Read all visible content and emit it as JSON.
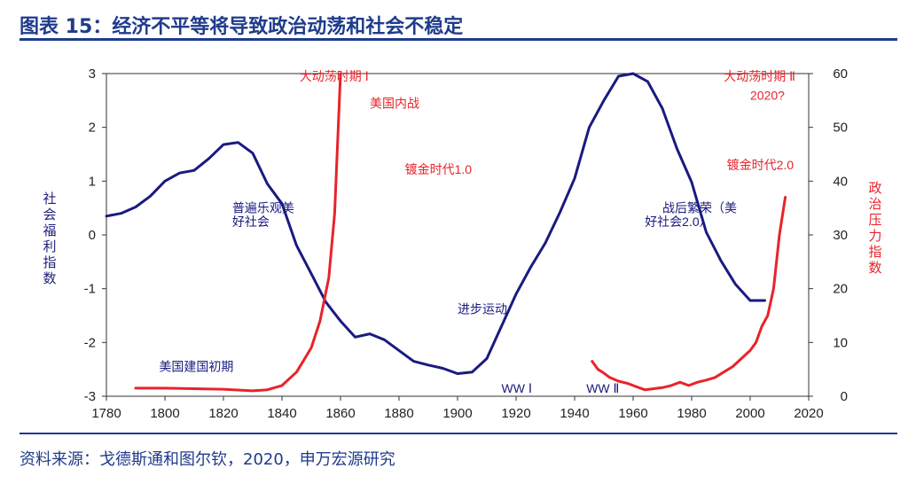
{
  "header": {
    "title": "图表 15：经济不平等将导致政治动荡和社会不稳定"
  },
  "footer": {
    "source": "资料来源：戈德斯通和图尔钦，2020，申万宏源研究"
  },
  "colors": {
    "brand": "#1f3b8c",
    "welfare_line": "#1a1a80",
    "pressure_line": "#e8232a",
    "axis": "#333333"
  },
  "chart_data": {
    "type": "line",
    "title": "",
    "xlabel": "",
    "xlim": [
      1780,
      2020
    ],
    "xticks": [
      1780,
      1800,
      1820,
      1840,
      1860,
      1880,
      1900,
      1920,
      1940,
      1960,
      1980,
      2000,
      2020
    ],
    "y_left": {
      "label": "社会福利指数",
      "lim": [
        -3,
        3
      ],
      "ticks": [
        -3,
        -2,
        -1,
        0,
        1,
        2,
        3
      ]
    },
    "y_right": {
      "label": "政治压力指数",
      "lim": [
        0,
        60
      ],
      "ticks": [
        0,
        10,
        20,
        30,
        40,
        50,
        60
      ]
    },
    "series": [
      {
        "name": "社会福利指数",
        "axis": "left",
        "color": "#1a1a80",
        "points": [
          [
            1780,
            0.35
          ],
          [
            1785,
            0.4
          ],
          [
            1790,
            0.52
          ],
          [
            1795,
            0.72
          ],
          [
            1800,
            1.0
          ],
          [
            1805,
            1.15
          ],
          [
            1810,
            1.2
          ],
          [
            1815,
            1.42
          ],
          [
            1820,
            1.68
          ],
          [
            1825,
            1.72
          ],
          [
            1830,
            1.52
          ],
          [
            1835,
            0.95
          ],
          [
            1840,
            0.58
          ],
          [
            1845,
            -0.2
          ],
          [
            1850,
            -0.72
          ],
          [
            1855,
            -1.25
          ],
          [
            1860,
            -1.6
          ],
          [
            1865,
            -1.9
          ],
          [
            1870,
            -1.84
          ],
          [
            1875,
            -1.95
          ],
          [
            1880,
            -2.15
          ],
          [
            1885,
            -2.35
          ],
          [
            1890,
            -2.42
          ],
          [
            1895,
            -2.48
          ],
          [
            1900,
            -2.58
          ],
          [
            1905,
            -2.55
          ],
          [
            1910,
            -2.3
          ],
          [
            1915,
            -1.7
          ],
          [
            1920,
            -1.1
          ],
          [
            1925,
            -0.6
          ],
          [
            1930,
            -0.15
          ],
          [
            1935,
            0.42
          ],
          [
            1940,
            1.05
          ],
          [
            1945,
            2.0
          ],
          [
            1950,
            2.5
          ],
          [
            1955,
            2.95
          ],
          [
            1960,
            3.0
          ],
          [
            1965,
            2.85
          ],
          [
            1970,
            2.35
          ],
          [
            1975,
            1.6
          ],
          [
            1980,
            0.98
          ],
          [
            1985,
            0.05
          ],
          [
            1990,
            -0.48
          ],
          [
            1995,
            -0.92
          ],
          [
            2000,
            -1.22
          ],
          [
            2005,
            -1.22
          ]
        ]
      },
      {
        "name": "政治压力指数",
        "axis": "right",
        "color": "#e8232a",
        "segments": [
          [
            [
              1790,
              1.5
            ],
            [
              1800,
              1.5
            ],
            [
              1810,
              1.4
            ],
            [
              1820,
              1.3
            ],
            [
              1830,
              1.0
            ],
            [
              1835,
              1.2
            ],
            [
              1840,
              2.0
            ],
            [
              1845,
              4.5
            ],
            [
              1850,
              9.0
            ],
            [
              1853,
              14.0
            ],
            [
              1856,
              22.0
            ],
            [
              1858,
              34.0
            ],
            [
              1860,
              60.0
            ]
          ],
          [
            [
              1946,
              6.5
            ],
            [
              1948,
              5.0
            ],
            [
              1950,
              4.3
            ],
            [
              1952,
              3.5
            ],
            [
              1955,
              2.8
            ],
            [
              1958,
              2.4
            ],
            [
              1961,
              1.8
            ],
            [
              1964,
              1.2
            ],
            [
              1967,
              1.4
            ],
            [
              1970,
              1.6
            ],
            [
              1973,
              2.0
            ],
            [
              1976,
              2.6
            ],
            [
              1979,
              2.0
            ],
            [
              1982,
              2.6
            ],
            [
              1985,
              3.0
            ],
            [
              1988,
              3.5
            ],
            [
              1991,
              4.5
            ],
            [
              1994,
              5.5
            ],
            [
              1997,
              7.0
            ],
            [
              2000,
              8.5
            ],
            [
              2002,
              10.0
            ],
            [
              2004,
              13.0
            ],
            [
              2006,
              15.0
            ],
            [
              2008,
              20.0
            ],
            [
              2010,
              30.0
            ],
            [
              2012,
              37.0
            ]
          ]
        ]
      }
    ],
    "annotations": [
      {
        "text": "大动荡时期 Ⅰ",
        "x": 1846,
        "y": 2.95,
        "color": "#e8232a"
      },
      {
        "text": "美国内战",
        "x": 1870,
        "y": 2.45,
        "color": "#e8232a"
      },
      {
        "text": "镀金时代1.0",
        "x": 1882,
        "y": 1.22,
        "color": "#e8232a"
      },
      {
        "text": "普遍乐观美",
        "x": 1823,
        "y": 0.5,
        "color": "#1a1a80"
      },
      {
        "text": "好社会",
        "x": 1823,
        "y": 0.25,
        "color": "#1a1a80"
      },
      {
        "text": "进步运动",
        "x": 1900,
        "y": -1.38,
        "color": "#1a1a80"
      },
      {
        "text": "美国建国初期",
        "x": 1798,
        "y": -2.45,
        "color": "#1a1a80"
      },
      {
        "text": "WW Ⅰ",
        "x": 1915,
        "y": -2.85,
        "color": "#1a1a80"
      },
      {
        "text": "WW Ⅱ",
        "x": 1944,
        "y": -2.85,
        "color": "#1a1a80"
      },
      {
        "text": "战后繁荣（美",
        "x": 1970,
        "y": 0.5,
        "color": "#1a1a80"
      },
      {
        "text": "好社会2.0）",
        "x": 1964,
        "y": 0.25,
        "color": "#1a1a80"
      },
      {
        "text": "大动荡时期 Ⅱ",
        "x": 1991,
        "y": 2.95,
        "color": "#e8232a"
      },
      {
        "text": "2020?",
        "x": 2000,
        "y": 2.6,
        "color": "#e8232a"
      },
      {
        "text": "镀金时代2.0",
        "x": 1992,
        "y": 1.3,
        "color": "#e8232a"
      }
    ]
  }
}
